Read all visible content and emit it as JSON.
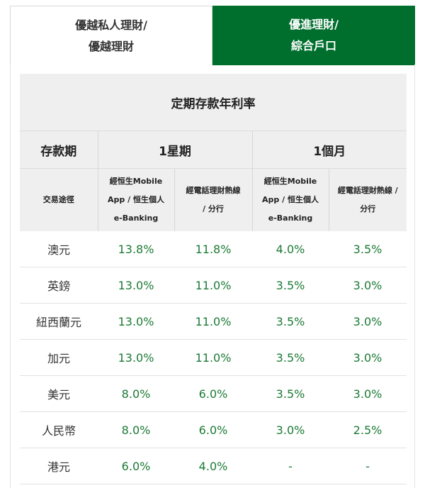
{
  "tabs": [
    {
      "line1": "優越私人理財/",
      "line2": "優越理財",
      "active": false
    },
    {
      "line1": "優進理財/",
      "line2": "綜合戶口",
      "active": true
    }
  ],
  "table": {
    "title": "定期存款年利率",
    "period_header": "存款期",
    "periods": [
      "1星期",
      "1個月"
    ],
    "channel_header": "交易途徑",
    "channels": [
      {
        "line1": "經恒生Mobile",
        "line2": "App / 恒生個人",
        "line3": "e-Banking"
      },
      {
        "line1": "經電話理財熱線",
        "line2": "/ 分行",
        "line3": ""
      },
      {
        "line1": "經恒生Mobile",
        "line2": "App / 恒生個人",
        "line3": "e-Banking"
      },
      {
        "line1": "經電話理財熱線 /",
        "line2": "分行",
        "line3": ""
      }
    ],
    "rows": [
      {
        "currency": "澳元",
        "rates": [
          "13.8%",
          "11.8%",
          "4.0%",
          "3.5%"
        ]
      },
      {
        "currency": "英鎊",
        "rates": [
          "13.0%",
          "11.0%",
          "3.5%",
          "3.0%"
        ]
      },
      {
        "currency": "紐西蘭元",
        "rates": [
          "13.0%",
          "11.0%",
          "3.5%",
          "3.0%"
        ]
      },
      {
        "currency": "加元",
        "rates": [
          "13.0%",
          "11.0%",
          "3.5%",
          "3.0%"
        ]
      },
      {
        "currency": "美元",
        "rates": [
          "8.0%",
          "6.0%",
          "3.5%",
          "3.0%"
        ]
      },
      {
        "currency": "人民幣",
        "rates": [
          "8.0%",
          "6.0%",
          "3.0%",
          "2.5%"
        ]
      },
      {
        "currency": "港元",
        "rates": [
          "6.0%",
          "4.0%",
          "-",
          "-"
        ]
      }
    ]
  },
  "colors": {
    "accent": "#006f2e",
    "rate_text": "#1b7a34",
    "header_bg": "#efefef"
  }
}
